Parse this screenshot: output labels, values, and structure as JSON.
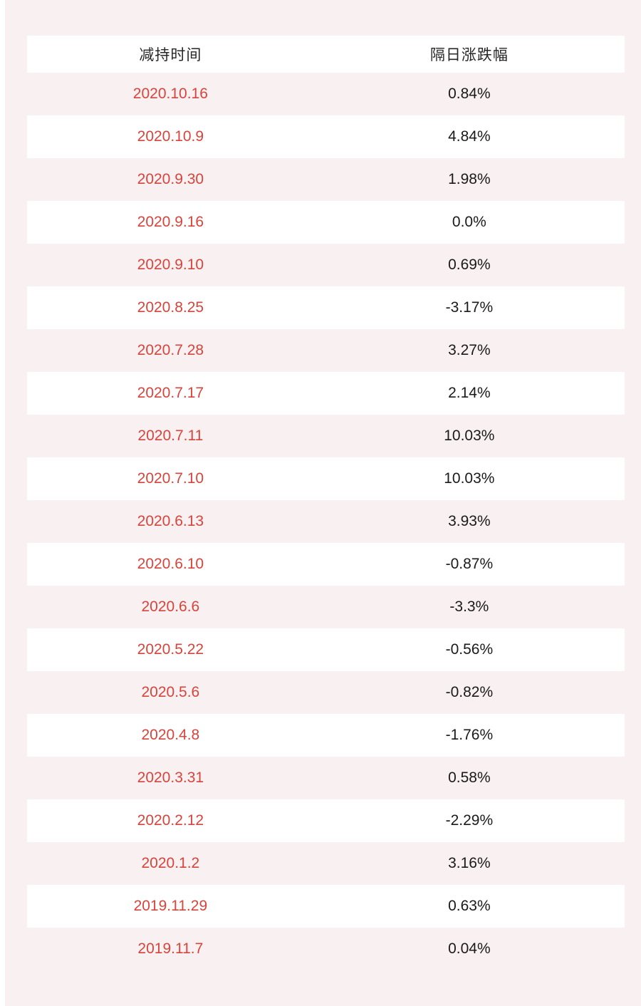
{
  "page": {
    "background_color": "#f9f1f1",
    "left_strip_color": "#ffffff",
    "row_stripe_pink": "#f9f1f1",
    "row_stripe_white": "#ffffff",
    "date_text_color": "#d8443c",
    "value_text_color": "#1a1a1a",
    "header_text_color": "#262626"
  },
  "chart_data": {
    "type": "table",
    "title": "",
    "columns": [
      "减持时间",
      "隔日涨跌幅"
    ],
    "rows": [
      {
        "date": "2020.10.16",
        "change": "0.84%"
      },
      {
        "date": "2020.10.9",
        "change": "4.84%"
      },
      {
        "date": "2020.9.30",
        "change": "1.98%"
      },
      {
        "date": "2020.9.16",
        "change": "0.0%"
      },
      {
        "date": "2020.9.10",
        "change": "0.69%"
      },
      {
        "date": "2020.8.25",
        "change": "-3.17%"
      },
      {
        "date": "2020.7.28",
        "change": "3.27%"
      },
      {
        "date": "2020.7.17",
        "change": "2.14%"
      },
      {
        "date": "2020.7.11",
        "change": "10.03%"
      },
      {
        "date": "2020.7.10",
        "change": "10.03%"
      },
      {
        "date": "2020.6.13",
        "change": "3.93%"
      },
      {
        "date": "2020.6.10",
        "change": "-0.87%"
      },
      {
        "date": "2020.6.6",
        "change": "-3.3%"
      },
      {
        "date": "2020.5.22",
        "change": "-0.56%"
      },
      {
        "date": "2020.5.6",
        "change": "-0.82%"
      },
      {
        "date": "2020.4.8",
        "change": "-1.76%"
      },
      {
        "date": "2020.3.31",
        "change": "0.58%"
      },
      {
        "date": "2020.2.12",
        "change": "-2.29%"
      },
      {
        "date": "2020.1.2",
        "change": "3.16%"
      },
      {
        "date": "2019.11.29",
        "change": "0.63%"
      },
      {
        "date": "2019.11.7",
        "change": "0.04%"
      }
    ]
  }
}
